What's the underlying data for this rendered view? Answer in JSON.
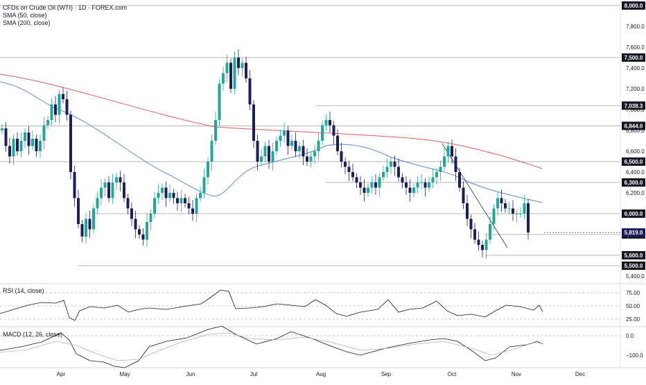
{
  "legend": {
    "title": "CFDs on Crude Oil (WTI) · 1D · FOREX.com",
    "sma50": "SMA (50, close)",
    "sma200": "SMA (200, close)",
    "rsi": "RSI (14, close)",
    "macd": "MACD (12, 26, close)"
  },
  "colors": {
    "up": "#26a69a",
    "down": "#1e1e5a",
    "sma50": "#5b8bd6",
    "sma200": "#e05c5c",
    "grid_line": "#9e9e9e",
    "label_bg": "#131722",
    "last_bg": "#1a1a5e"
  },
  "chart_data": {
    "type": "candlestick",
    "price_axis": {
      "ticks": [
        5400,
        5600,
        5800,
        6000,
        6200,
        6400,
        6600,
        6800,
        7000,
        7200,
        7400,
        7600,
        7800,
        8000
      ],
      "tick_labels": [
        "5,400.0",
        "5,600.0",
        "5,800.0",
        "6,000.0",
        "6,200.0",
        "6,400.0",
        "6,600.0",
        "6,800.0",
        "7,000.0",
        "7,200.0",
        "7,400.0",
        "7,600.0",
        "7,800.0",
        "8,000.0"
      ]
    },
    "level_labels": [
      {
        "value": 8000,
        "label": "8,000.0"
      },
      {
        "value": 7500,
        "label": "7,500.0"
      },
      {
        "value": 7038.3,
        "label": "7,038.3"
      },
      {
        "value": 6844,
        "label": "6,844.0"
      },
      {
        "value": 6500,
        "label": "6,500.0"
      },
      {
        "value": 6300,
        "label": "6,300.0"
      },
      {
        "value": 6000,
        "label": "6,000.0"
      },
      {
        "value": 5800,
        "label": "5,800.0"
      },
      {
        "value": 5600,
        "label": "5,600.0"
      },
      {
        "value": 5500,
        "label": "5,500.0"
      }
    ],
    "last_price": {
      "value": 5819,
      "label": "5,819.0"
    },
    "time_axis": [
      "Apr",
      "May",
      "Jun",
      "Jul",
      "Aug",
      "Sep",
      "Oct",
      "Nov",
      "Dec"
    ],
    "rsi_axis": {
      "ticks": [
        25,
        50,
        75
      ],
      "tick_labels": [
        "25.00",
        "50.00",
        "75.00"
      ]
    },
    "macd_axis": {
      "ticks": [
        0,
        -100
      ],
      "tick_labels": [
        "0.0",
        "−100.0"
      ]
    }
  }
}
